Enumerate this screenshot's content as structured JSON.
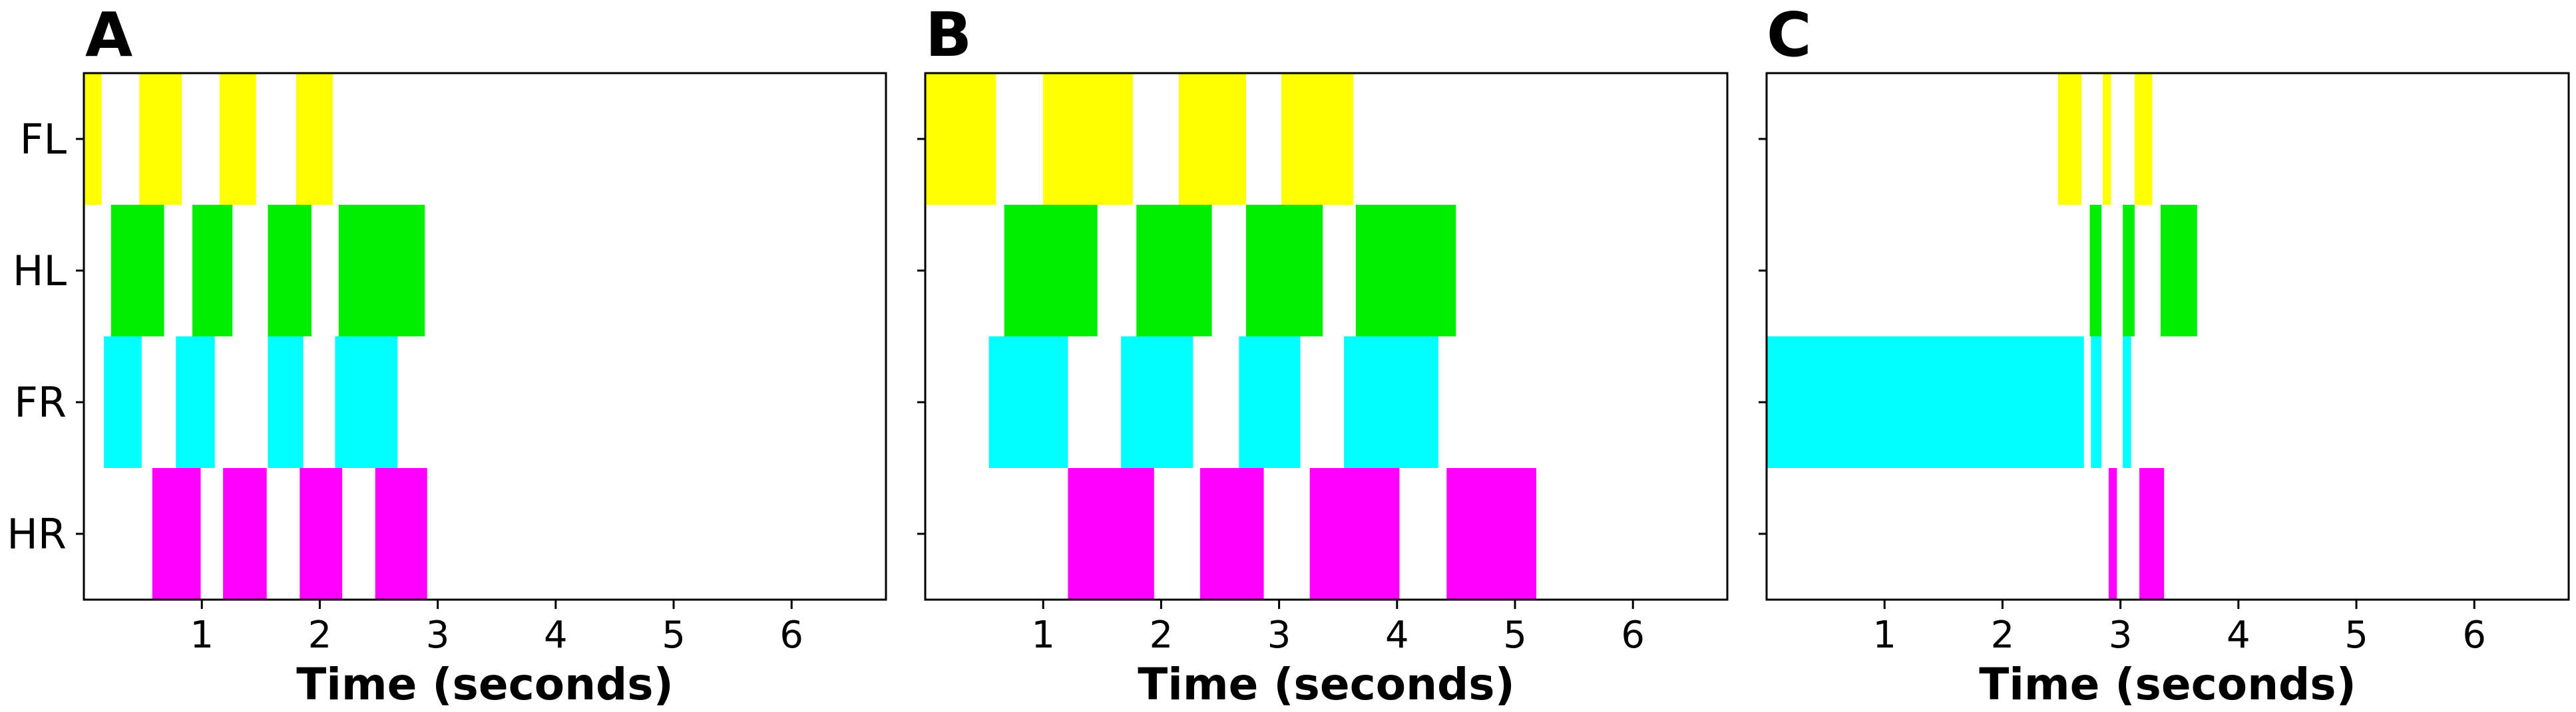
{
  "chart_data": [
    {
      "panel_label": "A",
      "type": "gait-diagram",
      "xlabel": "Time (seconds)",
      "xlim": [
        0,
        6.8
      ],
      "xticks": [
        1,
        2,
        3,
        4,
        5,
        6
      ],
      "legs": [
        "FL",
        "HL",
        "FR",
        "HR"
      ],
      "show_leg_labels": true,
      "intervals": {
        "FL": [
          [
            0.0,
            0.15
          ],
          [
            0.47,
            0.83
          ],
          [
            1.15,
            1.46
          ],
          [
            1.8,
            2.11
          ]
        ],
        "HL": [
          [
            0.23,
            0.68
          ],
          [
            0.92,
            1.26
          ],
          [
            1.56,
            1.93
          ],
          [
            2.16,
            2.89
          ]
        ],
        "FR": [
          [
            0.17,
            0.49
          ],
          [
            0.78,
            1.11
          ],
          [
            1.56,
            1.86
          ],
          [
            2.13,
            2.66
          ]
        ],
        "HR": [
          [
            0.58,
            0.99
          ],
          [
            1.18,
            1.55
          ],
          [
            1.83,
            2.19
          ],
          [
            2.47,
            2.91
          ]
        ]
      }
    },
    {
      "panel_label": "B",
      "type": "gait-diagram",
      "xlabel": "Time (seconds)",
      "xlim": [
        0,
        6.8
      ],
      "xticks": [
        1,
        2,
        3,
        4,
        5,
        6
      ],
      "legs": [
        "FL",
        "HL",
        "FR",
        "HR"
      ],
      "show_leg_labels": false,
      "intervals": {
        "FL": [
          [
            0.0,
            0.6
          ],
          [
            1.0,
            1.76
          ],
          [
            2.15,
            2.72
          ],
          [
            3.02,
            3.63
          ]
        ],
        "HL": [
          [
            0.67,
            1.46
          ],
          [
            1.79,
            2.43
          ],
          [
            2.72,
            3.37
          ],
          [
            3.65,
            4.5
          ]
        ],
        "FR": [
          [
            0.54,
            1.21
          ],
          [
            1.66,
            2.27
          ],
          [
            2.66,
            3.18
          ],
          [
            3.55,
            4.35
          ]
        ],
        "HR": [
          [
            1.21,
            1.94
          ],
          [
            2.33,
            2.87
          ],
          [
            3.26,
            4.02
          ],
          [
            4.42,
            5.18
          ]
        ]
      }
    },
    {
      "panel_label": "C",
      "type": "gait-diagram",
      "xlabel": "Time (seconds)",
      "xlim": [
        0,
        6.8
      ],
      "xticks": [
        1,
        2,
        3,
        4,
        5,
        6
      ],
      "legs": [
        "FL",
        "HL",
        "FR",
        "HR"
      ],
      "show_leg_labels": false,
      "intervals": {
        "FL": [
          [
            2.47,
            2.67
          ],
          [
            2.85,
            2.92
          ],
          [
            3.12,
            3.27
          ]
        ],
        "HL": [
          [
            2.74,
            2.84
          ],
          [
            3.02,
            3.12
          ],
          [
            3.34,
            3.65
          ]
        ],
        "FR": [
          [
            0.0,
            2.69
          ],
          [
            2.75,
            2.84
          ],
          [
            3.02,
            3.09
          ]
        ],
        "HR": [
          [
            2.9,
            2.97
          ],
          [
            3.16,
            3.37
          ]
        ]
      }
    }
  ],
  "colors": {
    "FL": "#ffff00",
    "HL": "#00ee00",
    "FR": "#00ffff",
    "HR": "#ff00ff",
    "axes": "#000000"
  }
}
